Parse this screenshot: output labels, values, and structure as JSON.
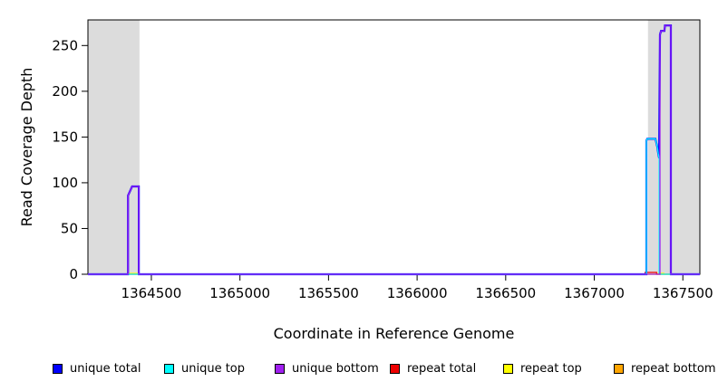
{
  "chart_data": {
    "type": "line",
    "title": "",
    "xlabel": "Coordinate in Reference Genome",
    "ylabel": "Read Coverage Depth",
    "xlim": [
      1364142,
      1367596
    ],
    "ylim": [
      0,
      278
    ],
    "x_ticks": [
      1364500,
      1365000,
      1365500,
      1366000,
      1366500,
      1367000,
      1367500
    ],
    "y_ticks": [
      0,
      50,
      100,
      150,
      200,
      250
    ],
    "grid": false,
    "legend_position": "bottom",
    "background_color": "#ffffff",
    "shaded_region_color": "#DCDCDC",
    "shaded_regions": [
      {
        "name": "masked-left",
        "from": 1364142,
        "to": 1364433
      },
      {
        "name": "masked-right",
        "from": 1367303,
        "to": 1367596
      }
    ],
    "series": [
      {
        "name": "repeat bottom",
        "color": "#FFA500",
        "width": 1.2,
        "points": [
          [
            1364142,
            0
          ],
          [
            1367596,
            0
          ]
        ]
      },
      {
        "name": "repeat top",
        "color": "#FFFF00",
        "width": 1.2,
        "points": [
          [
            1364142,
            0
          ],
          [
            1364373,
            0
          ],
          [
            1364373,
            1
          ],
          [
            1364428,
            1
          ],
          [
            1364428,
            0
          ],
          [
            1367360,
            0
          ],
          [
            1367360,
            1
          ],
          [
            1367393,
            1
          ],
          [
            1367393,
            0
          ],
          [
            1367596,
            0
          ]
        ]
      },
      {
        "name": "repeat total",
        "color": "#EE0000",
        "width": 1.2,
        "points": [
          [
            1364142,
            0
          ],
          [
            1367287,
            0
          ],
          [
            1367287,
            2
          ],
          [
            1367352,
            2
          ],
          [
            1367352,
            0
          ],
          [
            1367596,
            0
          ]
        ]
      },
      {
        "name": "unique total",
        "color": "#0000FF",
        "width": 2.2,
        "points": [
          [
            1364142,
            0
          ],
          [
            1364368,
            0
          ],
          [
            1364368,
            86
          ],
          [
            1364380,
            91
          ],
          [
            1364391,
            96
          ],
          [
            1364429,
            96
          ],
          [
            1364429,
            0
          ],
          [
            1367294,
            0
          ],
          [
            1367294,
            146
          ],
          [
            1367299,
            148
          ],
          [
            1367345,
            148
          ],
          [
            1367350,
            144
          ],
          [
            1367356,
            139
          ],
          [
            1367361,
            132
          ],
          [
            1367366,
            127
          ],
          [
            1367371,
            262
          ],
          [
            1367377,
            266
          ],
          [
            1367396,
            266
          ],
          [
            1367399,
            272
          ],
          [
            1367432,
            272
          ],
          [
            1367432,
            0
          ],
          [
            1367596,
            0
          ]
        ]
      },
      {
        "name": "unique top",
        "color": "#00FFFF",
        "width": 1.3,
        "points": [
          [
            1364142,
            0
          ],
          [
            1367294,
            0
          ],
          [
            1367294,
            146
          ],
          [
            1367299,
            148
          ],
          [
            1367345,
            148
          ],
          [
            1367350,
            144
          ],
          [
            1367356,
            139
          ],
          [
            1367361,
            132
          ],
          [
            1367366,
            127
          ],
          [
            1367366,
            0
          ],
          [
            1367596,
            0
          ]
        ]
      },
      {
        "name": "unique bottom",
        "color": "#A020F0",
        "width": 1.3,
        "points": [
          [
            1364142,
            0
          ],
          [
            1364368,
            0
          ],
          [
            1364368,
            86
          ],
          [
            1364380,
            91
          ],
          [
            1364391,
            96
          ],
          [
            1364429,
            96
          ],
          [
            1364429,
            0
          ],
          [
            1367371,
            0
          ],
          [
            1367371,
            262
          ],
          [
            1367377,
            266
          ],
          [
            1367396,
            266
          ],
          [
            1367399,
            272
          ],
          [
            1367432,
            272
          ],
          [
            1367432,
            0
          ],
          [
            1367596,
            0
          ]
        ]
      }
    ],
    "legend": [
      {
        "label": "unique total",
        "color": "#0000FF"
      },
      {
        "label": "unique top",
        "color": "#00FFFF"
      },
      {
        "label": "unique bottom",
        "color": "#A020F0"
      },
      {
        "label": "repeat total",
        "color": "#EE0000"
      },
      {
        "label": "repeat top",
        "color": "#FFFF00"
      },
      {
        "label": "repeat bottom",
        "color": "#FFA500"
      }
    ]
  }
}
